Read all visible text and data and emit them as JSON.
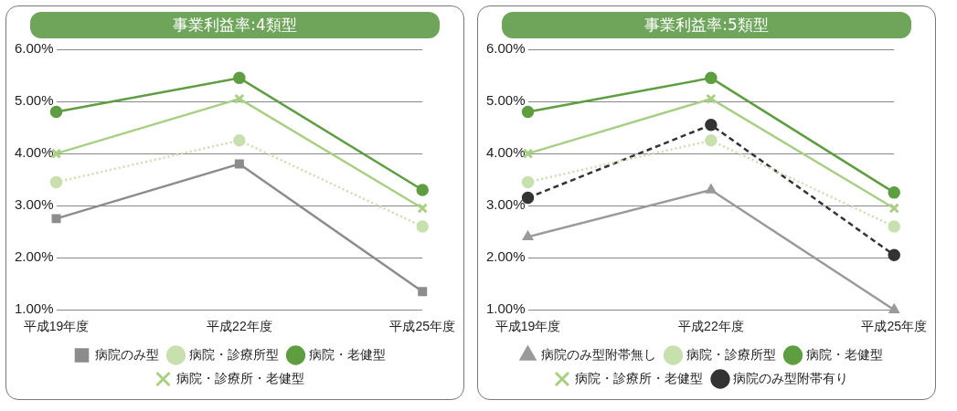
{
  "chart_data": [
    {
      "type": "line",
      "title": "事業利益率:4類型",
      "categories": [
        "平成19年度",
        "平成22年度",
        "平成25年度"
      ],
      "series": [
        {
          "name": "病院のみ型",
          "color": "#8c8c8c",
          "values": [
            2.75,
            3.8,
            1.35
          ],
          "marker": "square",
          "line_style": "solid"
        },
        {
          "name": "病院・診療所型",
          "color": "#c8dfae",
          "values": [
            3.45,
            4.25,
            2.6
          ],
          "marker": "circle",
          "line_style": "dotted"
        },
        {
          "name": "病院・老健型",
          "color": "#5e9e40",
          "values": [
            4.8,
            5.45,
            3.3
          ],
          "marker": "circle",
          "line_style": "solid"
        },
        {
          "name": "病院・診療所・老健型",
          "color": "#a9cf85",
          "values": [
            4.0,
            5.05,
            2.95
          ],
          "marker": "cross",
          "line_style": "solid"
        }
      ],
      "ylim": [
        1,
        6
      ],
      "yticks": [
        {
          "value": 1,
          "label": "1.00%"
        },
        {
          "value": 2,
          "label": "2.00%"
        },
        {
          "value": 3,
          "label": "3.00%"
        },
        {
          "value": 4,
          "label": "4.00%"
        },
        {
          "value": 5,
          "label": "5.00%"
        },
        {
          "value": 6,
          "label": "6.00%"
        }
      ],
      "grid": "y",
      "legend": "bottom"
    },
    {
      "type": "line",
      "title": "事業利益率:5類型",
      "categories": [
        "平成19年度",
        "平成22年度",
        "平成25年度"
      ],
      "series": [
        {
          "name": "病院のみ型附帯無し",
          "color": "#9a9a9a",
          "values": [
            2.4,
            3.3,
            1.0
          ],
          "marker": "triangle",
          "line_style": "solid"
        },
        {
          "name": "病院・診療所型",
          "color": "#c8dfae",
          "values": [
            3.45,
            4.25,
            2.6
          ],
          "marker": "circle",
          "line_style": "dotted"
        },
        {
          "name": "病院・老健型",
          "color": "#5e9e40",
          "values": [
            4.8,
            5.45,
            3.25
          ],
          "marker": "circle",
          "line_style": "solid"
        },
        {
          "name": "病院・診療所・老健型",
          "color": "#a9cf85",
          "values": [
            4.0,
            5.05,
            2.95
          ],
          "marker": "cross",
          "line_style": "solid"
        },
        {
          "name": "病院のみ型附帯有り",
          "color": "#333333",
          "values": [
            3.15,
            4.55,
            2.05
          ],
          "marker": "circle",
          "line_style": "dashed"
        }
      ],
      "ylim": [
        1,
        6
      ],
      "yticks": [
        {
          "value": 1,
          "label": "1.00%"
        },
        {
          "value": 2,
          "label": "2.00%"
        },
        {
          "value": 3,
          "label": "3.00%"
        },
        {
          "value": 4,
          "label": "4.00%"
        },
        {
          "value": 5,
          "label": "5.00%"
        },
        {
          "value": 6,
          "label": "6.00%"
        }
      ],
      "grid": "y",
      "legend": "bottom"
    }
  ]
}
